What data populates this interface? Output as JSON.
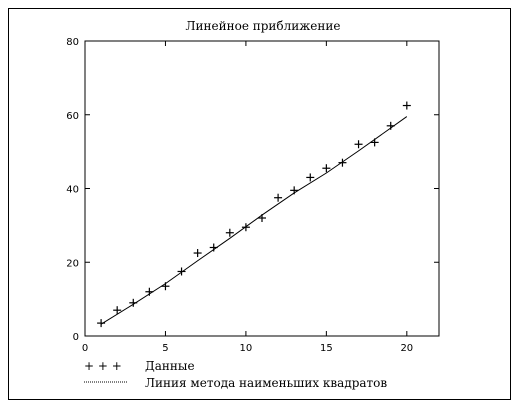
{
  "chart_data": {
    "type": "scatter",
    "title": "Линейное приближение",
    "xlim": [
      0,
      22
    ],
    "ylim": [
      0,
      80
    ],
    "xticks": [
      0,
      5,
      10,
      15,
      20
    ],
    "yticks": [
      0,
      20,
      40,
      60,
      80
    ],
    "grid": false,
    "legend_position": "bottom-left",
    "series": [
      {
        "name": "Данные",
        "kind": "markers",
        "marker": "+",
        "x": [
          1,
          2,
          3,
          4,
          5,
          6,
          7,
          8,
          9,
          10,
          11,
          12,
          13,
          14,
          15,
          16,
          17,
          18,
          19,
          20
        ],
        "y": [
          3.5,
          7,
          9,
          12,
          13.5,
          17.5,
          22.5,
          24,
          28,
          29.5,
          32,
          37.5,
          39.5,
          43,
          45.5,
          47,
          52,
          52.5,
          57,
          62.5
        ]
      },
      {
        "name": "Линия метода наименьших квадратов",
        "kind": "line",
        "x": [
          1,
          3,
          5,
          7,
          9,
          11,
          13,
          15,
          17,
          20
        ],
        "y": [
          3.2,
          8.6,
          14.2,
          20.4,
          26.5,
          32.8,
          38.8,
          44.2,
          50.2,
          59.5
        ]
      }
    ],
    "legend": {
      "markers_symbol": "+ + +",
      "entry_data": "Данные",
      "entry_line": "Линия метода наименьших квадратов"
    }
  }
}
